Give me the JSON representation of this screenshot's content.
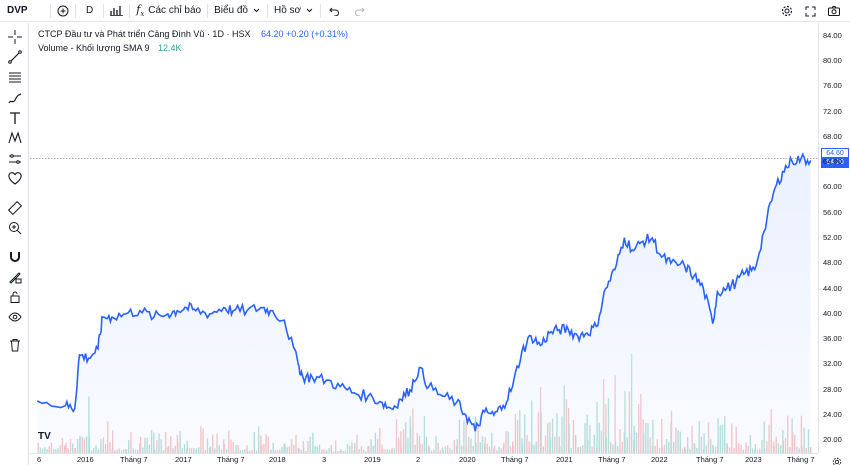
{
  "toolbar": {
    "symbol": "DVP",
    "interval": "D",
    "indicators_label": "Các chỉ báo",
    "chart_label": "Biểu đồ",
    "profile_label": "Hồ sơ",
    "icons": [
      "add-symbol-icon",
      "bar-style-icon",
      "fx-icon",
      "chevron-down-icon",
      "undo-icon",
      "redo-icon",
      "gear-icon",
      "fullscreen-icon",
      "snapshot-icon"
    ]
  },
  "legend": {
    "title": "CTCP Đầu tư và Phát triển Cảng Đình Vũ · 1D · HSX",
    "price": "64.20 +0.20 (+0.31%)",
    "volume_label": "Volume - Khối lượng SMA 9",
    "volume_value": "12.4K"
  },
  "left_tools": [
    "crosshair-icon",
    "trend-line-icon",
    "fib-icon",
    "brush-icon",
    "text-icon",
    "pattern-icon",
    "measure-ruler-icon",
    "heart-icon",
    "ruler-icon",
    "zoom-in-icon",
    "magnet-icon",
    "lock-draw-icon",
    "lock-icon",
    "eye-icon",
    "trash-icon"
  ],
  "price_axis": {
    "ticks": [
      "84.00",
      "80.00",
      "76.00",
      "72.00",
      "68.00",
      "64.00",
      "60.00",
      "56.00",
      "52.00",
      "48.00",
      "44.00",
      "40.00",
      "36.00",
      "32.00",
      "28.00",
      "24.00",
      "20.00"
    ],
    "tick_values": [
      84,
      80,
      76,
      72,
      68,
      64,
      60,
      56,
      52,
      48,
      44,
      40,
      36,
      32,
      28,
      24,
      20
    ],
    "last_price_tag": "64.60",
    "close_price_tag": "64.20"
  },
  "time_axis": {
    "labels": [
      "6",
      "2016",
      "Tháng 7",
      "2017",
      "Tháng 7",
      "2018",
      "3",
      "2019",
      "2",
      "2020",
      "Tháng 7",
      "2021",
      "Tháng 7",
      "2022",
      "Tháng 7",
      "2023",
      "Tháng 7"
    ]
  },
  "branding": {
    "logo": "TV"
  },
  "colors": {
    "line": "#2962ff",
    "area": "#e8efff",
    "vol_up": "#9ed8cd",
    "vol_down": "#f5b5b3",
    "accent": "#2962ff"
  },
  "chart_data": {
    "type": "area",
    "title": "CTCP Đầu tư và Phát triển Cảng Đình Vũ · 1D · HSX",
    "ylim": [
      18,
      86
    ],
    "x": [
      2015.5,
      2015.8,
      2015.9,
      2015.95,
      2016.05,
      2016.15,
      2016.2,
      2016.3,
      2016.45,
      2016.6,
      2016.75,
      2016.9,
      2017.0,
      2017.1,
      2017.2,
      2017.35,
      2017.5,
      2017.6,
      2017.75,
      2017.9,
      2018.0,
      2018.15,
      2018.3,
      2018.35,
      2018.45,
      2018.6,
      2018.75,
      2018.9,
      2019.05,
      2019.2,
      2019.3,
      2019.4,
      2019.5,
      2019.6,
      2019.7,
      2019.85,
      2020.0,
      2020.1,
      2020.2,
      2020.3,
      2020.4,
      2020.5,
      2020.6,
      2020.7,
      2020.8,
      2020.9,
      2021.0,
      2021.1,
      2021.2,
      2021.3,
      2021.4,
      2021.5,
      2021.6,
      2021.7,
      2021.8,
      2021.9,
      2022.0,
      2022.1,
      2022.2,
      2022.3,
      2022.45,
      2022.55,
      2022.65,
      2022.75,
      2022.8,
      2022.9,
      2023.0,
      2023.1,
      2023.2,
      2023.3,
      2023.4,
      2023.5,
      2023.6,
      2023.7,
      2023.8
    ],
    "y": [
      26.2,
      25.5,
      25.0,
      33.5,
      33.0,
      34.5,
      39.5,
      39.5,
      40.0,
      40.5,
      39.5,
      40.0,
      40.5,
      41.0,
      40.5,
      40.0,
      41.0,
      40.5,
      40.5,
      41.0,
      40.5,
      39.0,
      32.0,
      30.0,
      30.0,
      29.5,
      28.5,
      27.5,
      27.0,
      26.0,
      25.0,
      26.5,
      28.0,
      31.5,
      28.5,
      27.0,
      26.0,
      24.0,
      21.5,
      24.5,
      24.0,
      25.5,
      28.5,
      34.0,
      36.5,
      35.0,
      37.0,
      37.5,
      37.5,
      36.5,
      37.0,
      38.0,
      44.0,
      47.0,
      52.0,
      50.0,
      51.5,
      52.0,
      49.0,
      48.0,
      47.5,
      46.0,
      44.0,
      38.5,
      43.5,
      44.0,
      45.0,
      46.5,
      47.0,
      53.0,
      59.0,
      62.5,
      64.2,
      64.6,
      64.2
    ],
    "volume": [
      0.3,
      0.3,
      0.4,
      0.6,
      0.3,
      0.3,
      0.5,
      0.3,
      0.4,
      0.3,
      0.3,
      0.3,
      0.5,
      0.3,
      0.3,
      0.3,
      0.3,
      0.2,
      0.3,
      0.3,
      0.3,
      0.3,
      0.4,
      0.2,
      0.3,
      0.2,
      0.2,
      0.2,
      0.3,
      0.3,
      0.4,
      0.5,
      0.6,
      0.5,
      0.3,
      0.3,
      0.5,
      0.6,
      0.6,
      0.4,
      0.3,
      0.5,
      0.8,
      0.7,
      1.0,
      0.7,
      0.9,
      0.8,
      0.6,
      0.7,
      0.6,
      0.8,
      1.0,
      0.8,
      1.2,
      0.9,
      0.8,
      0.6,
      0.6,
      0.5,
      0.4,
      0.4,
      0.4,
      0.6,
      0.5,
      0.5,
      0.4,
      0.4,
      0.4,
      0.5,
      0.6,
      0.7,
      0.5,
      0.6,
      0.4
    ]
  }
}
